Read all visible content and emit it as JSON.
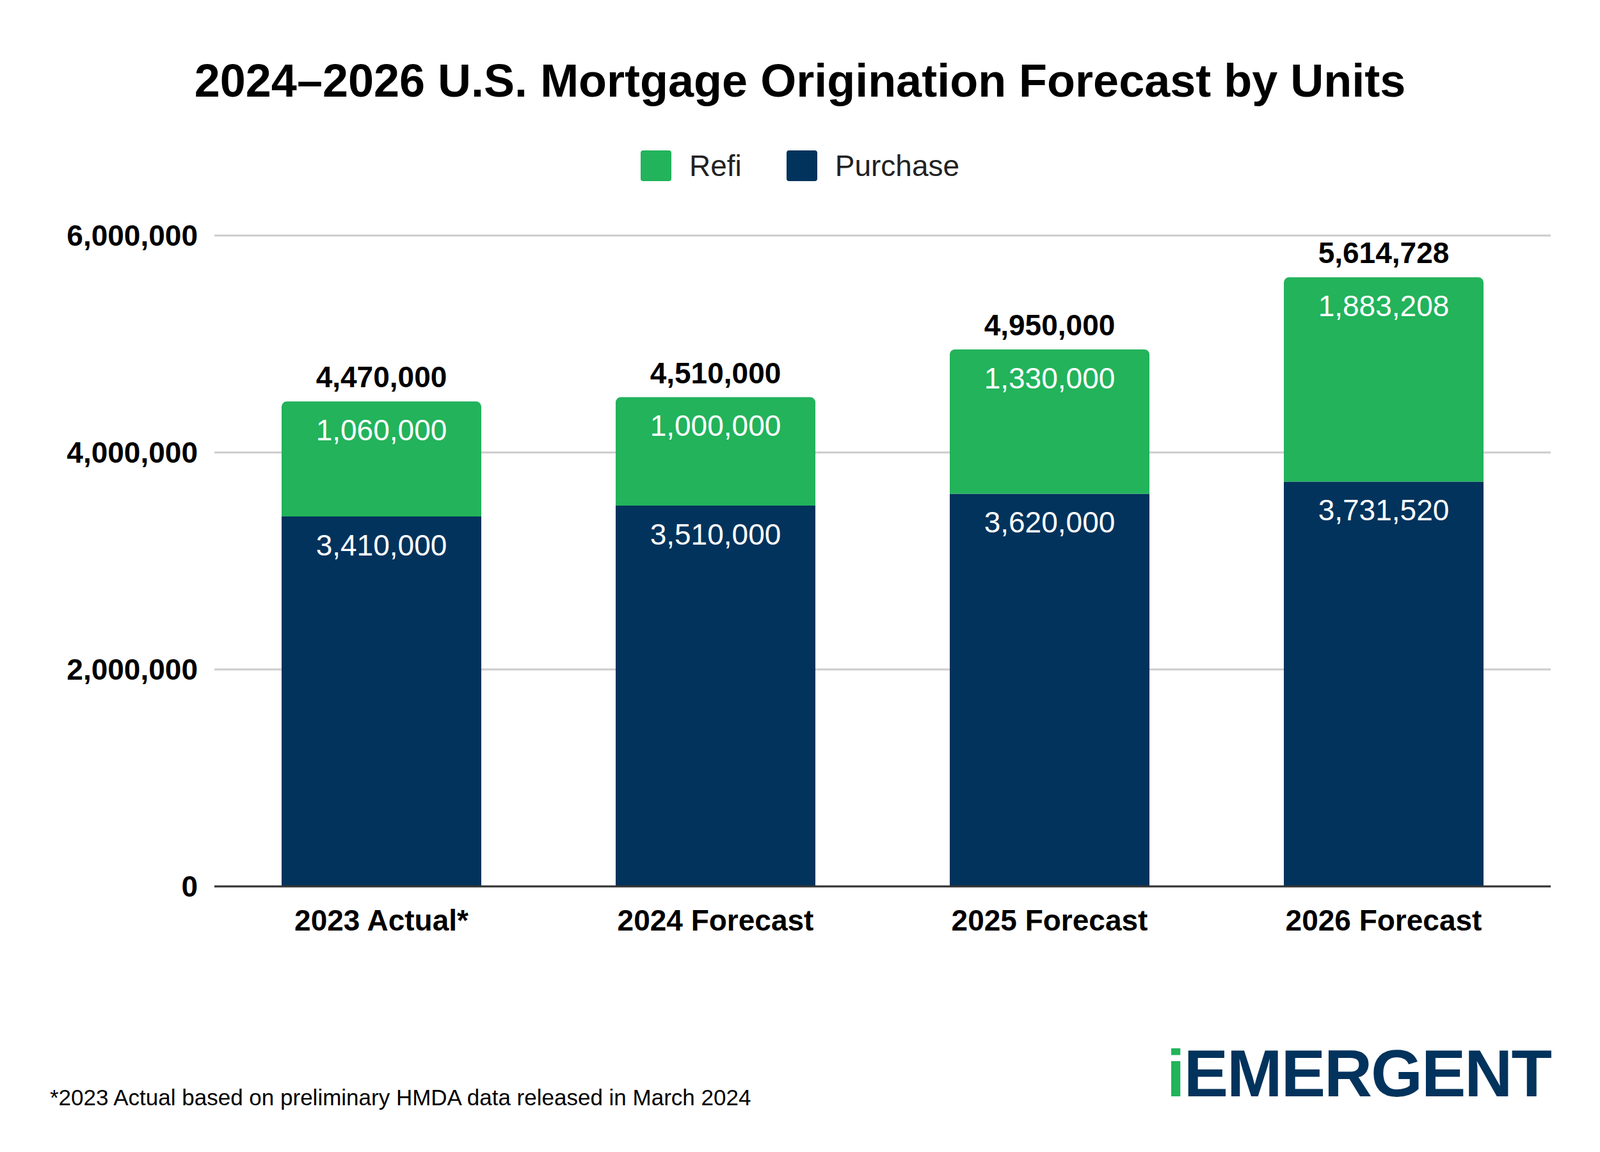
{
  "chart_data": {
    "type": "bar",
    "title": "2024–2026 U.S. Mortgage Origination Forecast by Units",
    "categories": [
      "2023 Actual*",
      "2024 Forecast",
      "2025 Forecast",
      "2026 Forecast"
    ],
    "series": [
      {
        "name": "Purchase",
        "color": "#02335c",
        "values": [
          3410000,
          3510000,
          3620000,
          3731520
        ],
        "value_labels": [
          "3,410,000",
          "3,510,000",
          "3,620,000",
          "3,731,520"
        ]
      },
      {
        "name": "Refi",
        "color": "#22b35b",
        "values": [
          1060000,
          1000000,
          1330000,
          1883208
        ],
        "value_labels": [
          "1,060,000",
          "1,000,000",
          "1,330,000",
          "1,883,208"
        ]
      }
    ],
    "totals": [
      4470000,
      4510000,
      4950000,
      5614728
    ],
    "total_labels": [
      "4,470,000",
      "4,510,000",
      "4,950,000",
      "5,614,728"
    ],
    "ylim": [
      0,
      6000000
    ],
    "yticks": [
      0,
      {
        "value": 2000000,
        "label": "2,000,000"
      },
      {
        "value": 4000000,
        "label": "4,000,000"
      },
      {
        "value": 6000000,
        "label": "6,000,000"
      }
    ],
    "grid": true,
    "stacked": true,
    "data_labels": true,
    "legend": "top",
    "footnote": "*2023 Actual based on preliminary HMDA data released in March 2024",
    "logo": "iEMERGENT"
  }
}
